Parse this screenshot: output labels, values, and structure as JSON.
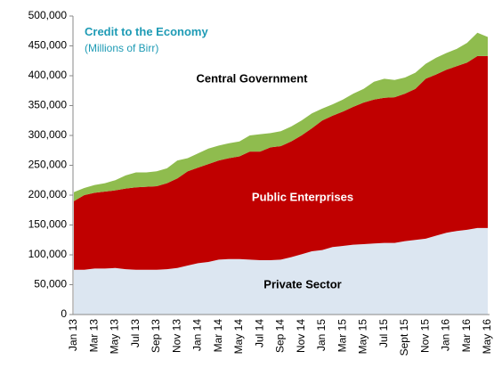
{
  "chart_data": {
    "type": "stacked-area",
    "title": "Credit to the Economy",
    "subtitle": "(Millions of Birr)",
    "categories": [
      "Jan 13",
      null,
      "Mar 13",
      null,
      "May 13",
      null,
      "Jul 13",
      null,
      "Sep 13",
      null,
      "Nov 13",
      null,
      "Jan 14",
      null,
      "Mar 14",
      null,
      "May 14",
      null,
      "Jul 14",
      null,
      "Sep 14",
      null,
      "Nov 14",
      null,
      "Jan 15",
      null,
      "Mar 15",
      null,
      "May 15",
      null,
      "Jul 15",
      null,
      "Sept 15",
      null,
      "Nov 15",
      null,
      "Jan 16",
      null,
      "Mar 16",
      null,
      "May 16"
    ],
    "series": [
      {
        "name": "Private Sector",
        "color": "#dce6f1",
        "values": [
          75000,
          75000,
          77000,
          77000,
          78000,
          76000,
          75000,
          75000,
          75000,
          76000,
          78000,
          82000,
          86000,
          88000,
          92000,
          93000,
          93000,
          92000,
          91000,
          91000,
          92000,
          96000,
          101000,
          106000,
          108000,
          113000,
          115000,
          117000,
          118000,
          119000,
          120000,
          120000,
          123000,
          125000,
          127000,
          132000,
          137000,
          140000,
          142000,
          145000,
          145000
        ]
      },
      {
        "name": "Public Enterprises",
        "color": "#c00000",
        "values": [
          115000,
          125000,
          127000,
          129000,
          130000,
          135000,
          138000,
          139000,
          140000,
          144000,
          150000,
          158000,
          160000,
          164000,
          166000,
          169000,
          172000,
          181000,
          182000,
          189000,
          190000,
          194000,
          199000,
          206000,
          217000,
          220000,
          225000,
          231000,
          237000,
          241000,
          243000,
          244000,
          247000,
          253000,
          268000,
          270000,
          273000,
          276000,
          280000,
          288000,
          288000
        ]
      },
      {
        "name": "Central Government",
        "color": "#8fbc4e",
        "values": [
          15000,
          12000,
          13000,
          14000,
          17000,
          22000,
          25000,
          24000,
          25000,
          25000,
          30000,
          22000,
          24000,
          26000,
          25000,
          25000,
          25000,
          27000,
          29000,
          24000,
          25000,
          25000,
          25000,
          25000,
          20000,
          19000,
          20000,
          22000,
          23000,
          30000,
          32000,
          29000,
          27000,
          27000,
          25000,
          28000,
          28000,
          29000,
          33000,
          39000,
          32000
        ]
      }
    ],
    "ylim": [
      0,
      500000
    ],
    "yticks": [
      0,
      {
        "value": 50000,
        "label": "50,000"
      },
      {
        "value": 100000,
        "label": "100,000"
      },
      {
        "value": 150000,
        "label": "150,000"
      },
      {
        "value": 200000,
        "label": "200,000"
      },
      {
        "value": 250000,
        "label": "250,000"
      },
      {
        "value": 300000,
        "label": "300,000"
      },
      {
        "value": 350000,
        "label": "350,000"
      },
      {
        "value": 400000,
        "label": "400,000"
      },
      {
        "value": 450000,
        "label": "450,000"
      },
      {
        "value": 500000,
        "label": "500,000"
      }
    ],
    "grid": false
  }
}
